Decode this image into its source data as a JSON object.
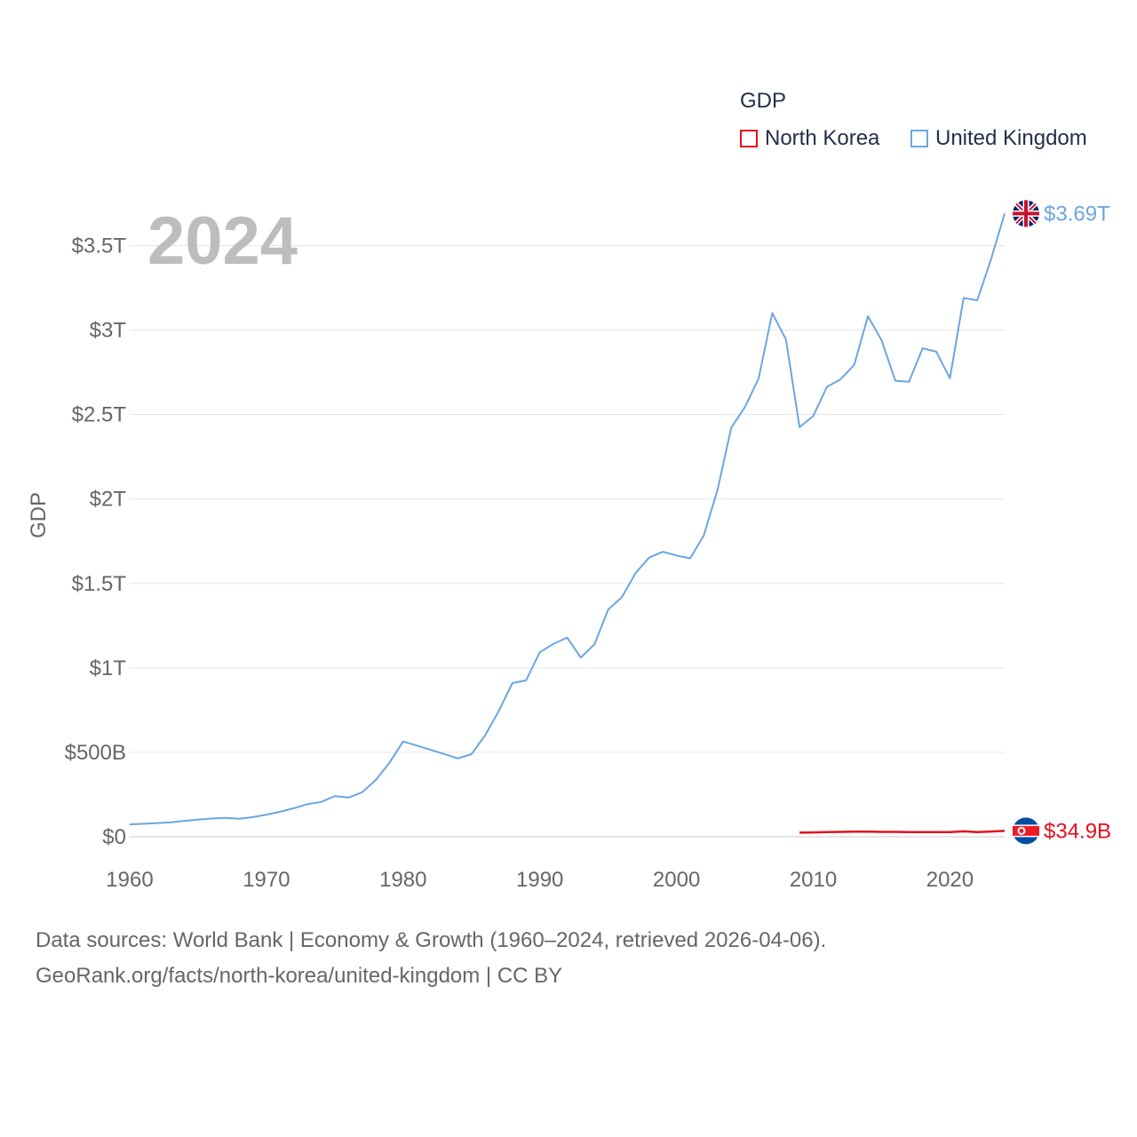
{
  "legend": {
    "title": "GDP",
    "items": [
      {
        "label": "North Korea",
        "color": "#e3101c"
      },
      {
        "label": "United Kingdom",
        "color": "#6aa6e2"
      }
    ]
  },
  "year_label": "2024",
  "source": {
    "line1": "Data sources: World Bank | Economy & Growth (1960–2024, retrieved 2026-04-06).",
    "line2": "GeoRank.org/facts/north-korea/united-kingdom | CC BY"
  },
  "chart_data": {
    "type": "line",
    "title": "",
    "xlabel": "",
    "ylabel": "GDP",
    "xlim": [
      1960,
      2024
    ],
    "ylim": [
      0,
      3.75
    ],
    "x_ticks": [
      1960,
      1970,
      1980,
      1990,
      2000,
      2010,
      2020
    ],
    "x_tick_labels": [
      "1960",
      "1970",
      "1980",
      "1990",
      "2000",
      "2010",
      "2020"
    ],
    "y_ticks": [
      0,
      0.5,
      1,
      1.5,
      2,
      2.5,
      3,
      3.5
    ],
    "y_tick_labels": [
      "$0",
      "$500B",
      "$1T",
      "$1.5T",
      "$2T",
      "$2.5T",
      "$3T",
      "$3.5T"
    ],
    "unit": "trillion USD",
    "series": [
      {
        "name": "United Kingdom",
        "color": "#6aa6e2",
        "end_label": "$3.69T",
        "x": [
          1960,
          1961,
          1962,
          1963,
          1964,
          1965,
          1966,
          1967,
          1968,
          1969,
          1970,
          1971,
          1972,
          1973,
          1974,
          1975,
          1976,
          1977,
          1978,
          1979,
          1980,
          1981,
          1982,
          1983,
          1984,
          1985,
          1986,
          1987,
          1988,
          1989,
          1990,
          1991,
          1992,
          1993,
          1994,
          1995,
          1996,
          1997,
          1998,
          1999,
          2000,
          2001,
          2002,
          2003,
          2004,
          2005,
          2006,
          2007,
          2008,
          2009,
          2010,
          2011,
          2012,
          2013,
          2014,
          2015,
          2016,
          2017,
          2018,
          2019,
          2020,
          2021,
          2022,
          2023,
          2024
        ],
        "values": [
          0.073,
          0.077,
          0.081,
          0.085,
          0.094,
          0.101,
          0.108,
          0.112,
          0.107,
          0.116,
          0.131,
          0.148,
          0.169,
          0.193,
          0.206,
          0.241,
          0.232,
          0.263,
          0.336,
          0.438,
          0.564,
          0.54,
          0.515,
          0.49,
          0.464,
          0.489,
          0.601,
          0.745,
          0.91,
          0.926,
          1.093,
          1.142,
          1.179,
          1.061,
          1.14,
          1.345,
          1.419,
          1.561,
          1.653,
          1.687,
          1.665,
          1.649,
          1.785,
          2.055,
          2.422,
          2.544,
          2.713,
          3.101,
          2.944,
          2.425,
          2.491,
          2.664,
          2.708,
          2.795,
          3.082,
          2.939,
          2.7,
          2.694,
          2.892,
          2.872,
          2.715,
          3.19,
          3.176,
          3.418,
          3.69
        ]
      },
      {
        "name": "North Korea",
        "color": "#e3101c",
        "end_label": "$34.9B",
        "x": [
          2009,
          2010,
          2011,
          2012,
          2013,
          2014,
          2015,
          2016,
          2017,
          2018,
          2019,
          2020,
          2021,
          2022,
          2023,
          2024
        ],
        "values": [
          0.024,
          0.026,
          0.028,
          0.029,
          0.03,
          0.03,
          0.029,
          0.029,
          0.028,
          0.028,
          0.028,
          0.028,
          0.032,
          0.028,
          0.031,
          0.0349
        ]
      }
    ]
  }
}
